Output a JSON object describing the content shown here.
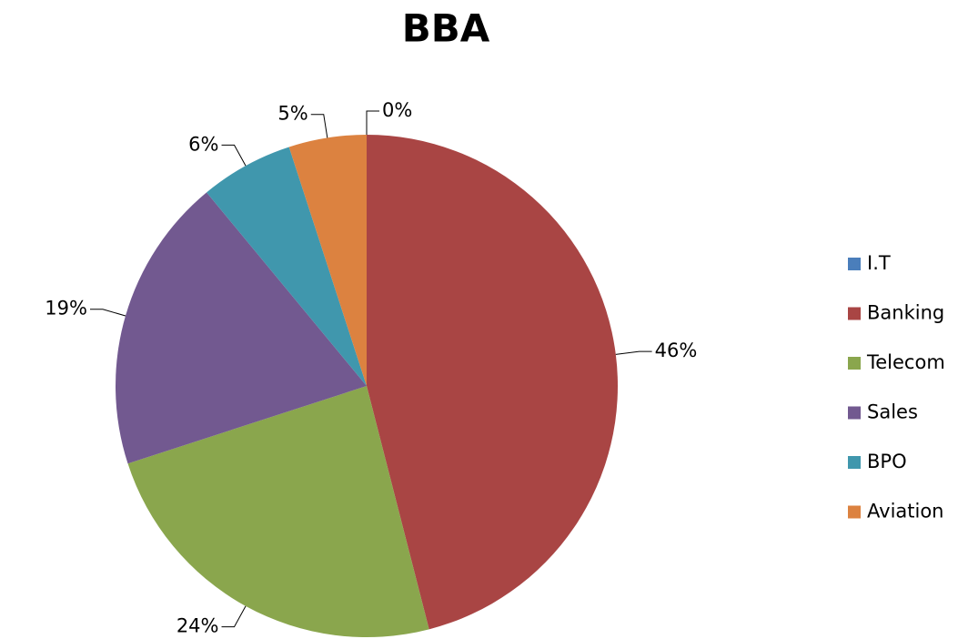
{
  "chart_data": {
    "type": "pie",
    "title": "BBA",
    "categories": [
      "I.T",
      "Banking",
      "Telecom",
      "Sales",
      "BPO",
      "Aviation"
    ],
    "values": [
      0,
      46,
      24,
      19,
      6,
      5
    ],
    "value_labels": [
      "0%",
      "46%",
      "24%",
      "19%",
      "6%",
      "5%"
    ],
    "colors": [
      "#4a7ebb",
      "#a94544",
      "#8aa64d",
      "#725990",
      "#4097ad",
      "#dc8240"
    ],
    "legend": "right"
  }
}
